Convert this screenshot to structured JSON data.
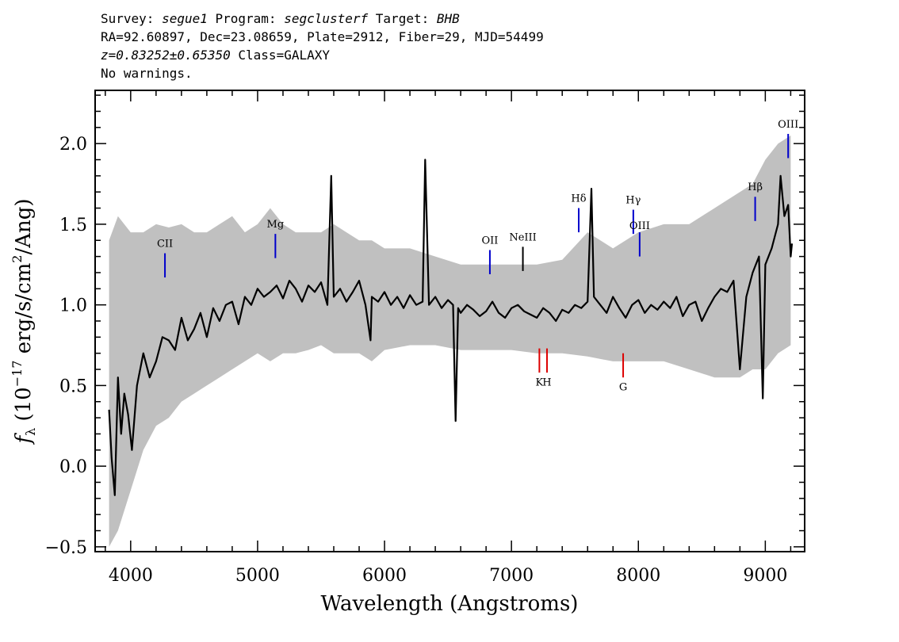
{
  "header": {
    "survey_label": "Survey: ",
    "survey": "segue1",
    "program_label": " Program: ",
    "program": "segclusterf",
    "target_label": " Target: ",
    "target": "BHB",
    "line2": "RA=92.60897, Dec=23.08659, Plate=2912, Fiber=29, MJD=54499",
    "redshift": "z=0.83252±0.65350",
    "class_text": " Class=GALAXY",
    "warnings": "No warnings."
  },
  "chart_data": {
    "type": "line",
    "title": "",
    "xlabel": "Wavelength (Angstroms)",
    "ylabel": "f_λ (10^-17 erg/s/cm^2/Ang)",
    "ylabel_parts": {
      "f": "f",
      "lambda": "λ",
      "prefix": " (10",
      "exp1": "−17",
      "mid": " erg/s/cm",
      "exp2": "2",
      "suffix": "/Ang)"
    },
    "xlim": [
      3720,
      9310
    ],
    "ylim": [
      -0.53,
      2.33
    ],
    "xticks": [
      4000,
      5000,
      6000,
      7000,
      8000,
      9000
    ],
    "xtick_labels": [
      "4000",
      "5000",
      "6000",
      "7000",
      "8000",
      "9000"
    ],
    "yticks": [
      -0.5,
      0.0,
      0.5,
      1.0,
      1.5,
      2.0
    ],
    "ytick_labels": [
      "−0.5",
      "0.0",
      "0.5",
      "1.0",
      "1.5",
      "2.0"
    ],
    "grid": false,
    "colors": {
      "flux": "#000000",
      "error_band": "#c0c0c0",
      "emission": "#0000cc",
      "absorption": "#dd0000",
      "other": "#000000"
    },
    "series": [
      {
        "name": "",
        "kind": "smoothed_flux",
        "x": [
          3830,
          3850,
          3875,
          3900,
          3925,
          3950,
          3980,
          4010,
          4050,
          4100,
          4150,
          4200,
          4250,
          4300,
          4350,
          4400,
          4450,
          4500,
          4550,
          4600,
          4650,
          4700,
          4750,
          4800,
          4850,
          4900,
          4950,
          5000,
          5050,
          5100,
          5150,
          5200,
          5250,
          5300,
          5350,
          5400,
          5450,
          5500,
          5550,
          5580,
          5600,
          5650,
          5700,
          5750,
          5800,
          5850,
          5890,
          5900,
          5950,
          6000,
          6050,
          6100,
          6150,
          6200,
          6250,
          6300,
          6320,
          6350,
          6400,
          6450,
          6500,
          6540,
          6560,
          6580,
          6600,
          6650,
          6700,
          6750,
          6800,
          6850,
          6900,
          6950,
          7000,
          7050,
          7100,
          7150,
          7200,
          7250,
          7300,
          7350,
          7400,
          7450,
          7500,
          7550,
          7600,
          7630,
          7650,
          7700,
          7750,
          7800,
          7850,
          7900,
          7950,
          8000,
          8050,
          8100,
          8150,
          8200,
          8250,
          8300,
          8350,
          8400,
          8450,
          8500,
          8550,
          8600,
          8650,
          8700,
          8750,
          8800,
          8850,
          8900,
          8950,
          8980,
          9000,
          9050,
          9100,
          9120,
          9150,
          9180,
          9200,
          9210
        ],
        "y": [
          0.35,
          0.05,
          -0.18,
          0.55,
          0.2,
          0.45,
          0.32,
          0.1,
          0.5,
          0.7,
          0.55,
          0.65,
          0.8,
          0.78,
          0.72,
          0.92,
          0.78,
          0.85,
          0.95,
          0.8,
          0.98,
          0.9,
          1.0,
          1.02,
          0.88,
          1.05,
          1.0,
          1.1,
          1.05,
          1.08,
          1.12,
          1.04,
          1.15,
          1.1,
          1.02,
          1.12,
          1.08,
          1.14,
          1.0,
          1.8,
          1.05,
          1.1,
          1.02,
          1.08,
          1.15,
          1.0,
          0.78,
          1.05,
          1.02,
          1.08,
          1.0,
          1.05,
          0.98,
          1.06,
          1.0,
          1.02,
          1.9,
          1.0,
          1.05,
          0.98,
          1.03,
          1.0,
          0.28,
          0.98,
          0.95,
          1.0,
          0.97,
          0.93,
          0.96,
          1.02,
          0.95,
          0.92,
          0.98,
          1.0,
          0.96,
          0.94,
          0.92,
          0.98,
          0.95,
          0.9,
          0.97,
          0.95,
          1.0,
          0.98,
          1.02,
          1.72,
          1.05,
          1.0,
          0.95,
          1.05,
          0.98,
          0.92,
          1.0,
          1.03,
          0.95,
          1.0,
          0.97,
          1.02,
          0.98,
          1.05,
          0.93,
          1.0,
          1.02,
          0.9,
          0.98,
          1.05,
          1.1,
          1.08,
          1.15,
          0.6,
          1.05,
          1.2,
          1.3,
          0.42,
          1.25,
          1.35,
          1.5,
          1.8,
          1.55,
          1.62,
          1.3,
          1.38
        ]
      },
      {
        "name": "",
        "kind": "error_envelope",
        "x": [
          3830,
          3900,
          4000,
          4100,
          4200,
          4300,
          4400,
          4500,
          4600,
          4700,
          4800,
          4900,
          5000,
          5100,
          5200,
          5300,
          5400,
          5500,
          5600,
          5700,
          5800,
          5900,
          6000,
          6200,
          6400,
          6600,
          6800,
          7000,
          7200,
          7400,
          7600,
          7800,
          8000,
          8200,
          8400,
          8600,
          8800,
          8900,
          9000,
          9100,
          9200
        ],
        "upper": [
          1.4,
          1.55,
          1.45,
          1.45,
          1.5,
          1.48,
          1.5,
          1.45,
          1.45,
          1.5,
          1.55,
          1.45,
          1.5,
          1.6,
          1.5,
          1.45,
          1.45,
          1.45,
          1.5,
          1.45,
          1.4,
          1.4,
          1.35,
          1.35,
          1.3,
          1.25,
          1.25,
          1.25,
          1.25,
          1.28,
          1.45,
          1.35,
          1.45,
          1.5,
          1.5,
          1.6,
          1.7,
          1.75,
          1.9,
          2.0,
          2.05
        ],
        "lower": [
          -0.5,
          -0.4,
          -0.15,
          0.1,
          0.25,
          0.3,
          0.4,
          0.45,
          0.5,
          0.55,
          0.6,
          0.65,
          0.7,
          0.65,
          0.7,
          0.7,
          0.72,
          0.75,
          0.7,
          0.7,
          0.7,
          0.65,
          0.72,
          0.75,
          0.75,
          0.72,
          0.72,
          0.72,
          0.7,
          0.7,
          0.68,
          0.65,
          0.65,
          0.65,
          0.6,
          0.55,
          0.55,
          0.6,
          0.6,
          0.7,
          0.75
        ]
      }
    ],
    "line_markers": [
      {
        "label": "CII",
        "x": 4270,
        "kind": "emission",
        "y0": 1.17,
        "y1": 1.32,
        "ly": 1.36
      },
      {
        "label": "Mg",
        "x": 5140,
        "kind": "emission",
        "y0": 1.29,
        "y1": 1.44,
        "ly": 1.48
      },
      {
        "label": "OII",
        "x": 6830,
        "kind": "emission",
        "y0": 1.19,
        "y1": 1.34,
        "ly": 1.38
      },
      {
        "label": "NeIII",
        "x": 7090,
        "kind": "other",
        "y0": 1.21,
        "y1": 1.36,
        "ly": 1.4
      },
      {
        "label": "Hδ",
        "x": 7530,
        "kind": "emission",
        "y0": 1.45,
        "y1": 1.6,
        "ly": 1.64
      },
      {
        "label": "Hγ",
        "x": 7960,
        "kind": "emission",
        "y0": 1.44,
        "y1": 1.59,
        "ly": 1.63
      },
      {
        "label": "OIII",
        "x": 8010,
        "kind": "emission",
        "y0": 1.3,
        "y1": 1.45,
        "ly": 1.47
      },
      {
        "label": "Hβ",
        "x": 8920,
        "kind": "emission",
        "y0": 1.52,
        "y1": 1.67,
        "ly": 1.71
      },
      {
        "label": "OIII",
        "x": 9180,
        "kind": "emission",
        "y0": 1.91,
        "y1": 2.06,
        "ly": 2.1
      },
      {
        "label": "K",
        "x": 7220,
        "kind": "absorption",
        "y0": 0.58,
        "y1": 0.73,
        "ly": 0.5
      },
      {
        "label": "H",
        "x": 7280,
        "kind": "absorption",
        "y0": 0.58,
        "y1": 0.73,
        "ly": 0.5
      },
      {
        "label": "G",
        "x": 7880,
        "kind": "absorption",
        "y0": 0.55,
        "y1": 0.7,
        "ly": 0.47
      }
    ]
  }
}
